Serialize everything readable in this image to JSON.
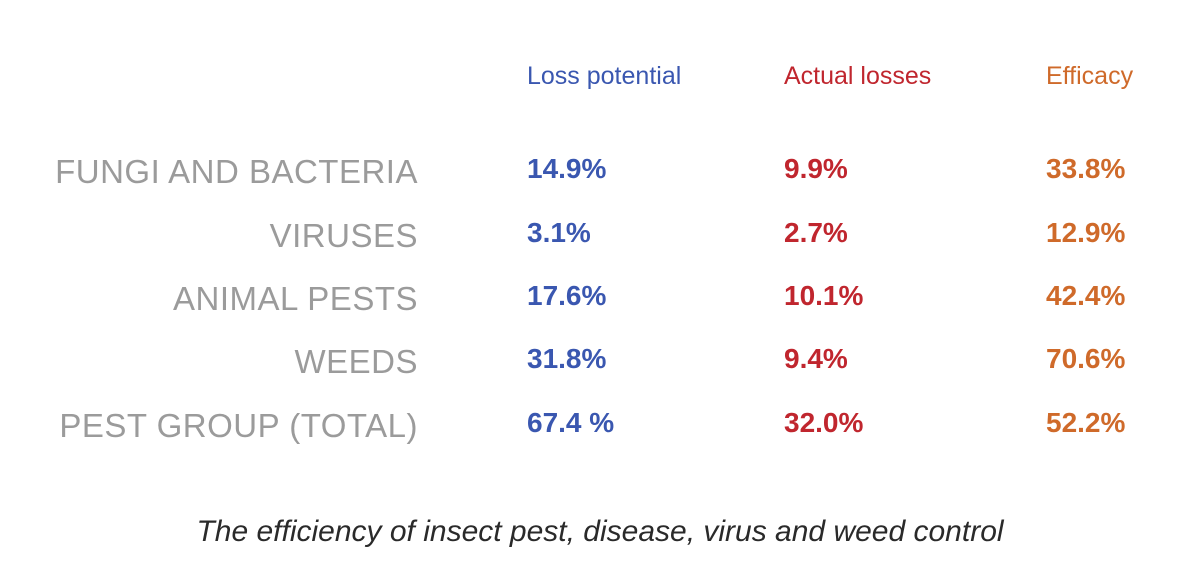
{
  "colors": {
    "loss_potential": "#3a57b0",
    "actual_losses": "#c0262e",
    "efficacy": "#cf6a2a",
    "row_label": "#9b9b9b",
    "caption": "#2a2a2a"
  },
  "chart_data": {
    "type": "table",
    "title": "",
    "columns": [
      "Loss potential",
      "Actual losses",
      "Efficacy"
    ],
    "rows": [
      {
        "label": "FUNGI AND BACTERIA",
        "values": [
          "14.9%",
          "9.9%",
          "33.8%"
        ]
      },
      {
        "label": "VIRUSES",
        "values": [
          "3.1%",
          "2.7%",
          "12.9%"
        ]
      },
      {
        "label": "ANIMAL PESTS",
        "values": [
          "17.6%",
          "10.1%",
          "42.4%"
        ]
      },
      {
        "label": "WEEDS",
        "values": [
          "31.8%",
          "9.4%",
          "70.6%"
        ]
      },
      {
        "label": "PEST GROUP (TOTAL)",
        "values": [
          "67.4 %",
          "32.0%",
          "52.2%"
        ]
      }
    ],
    "caption": "The efficiency of insect pest, disease, virus and weed control"
  }
}
